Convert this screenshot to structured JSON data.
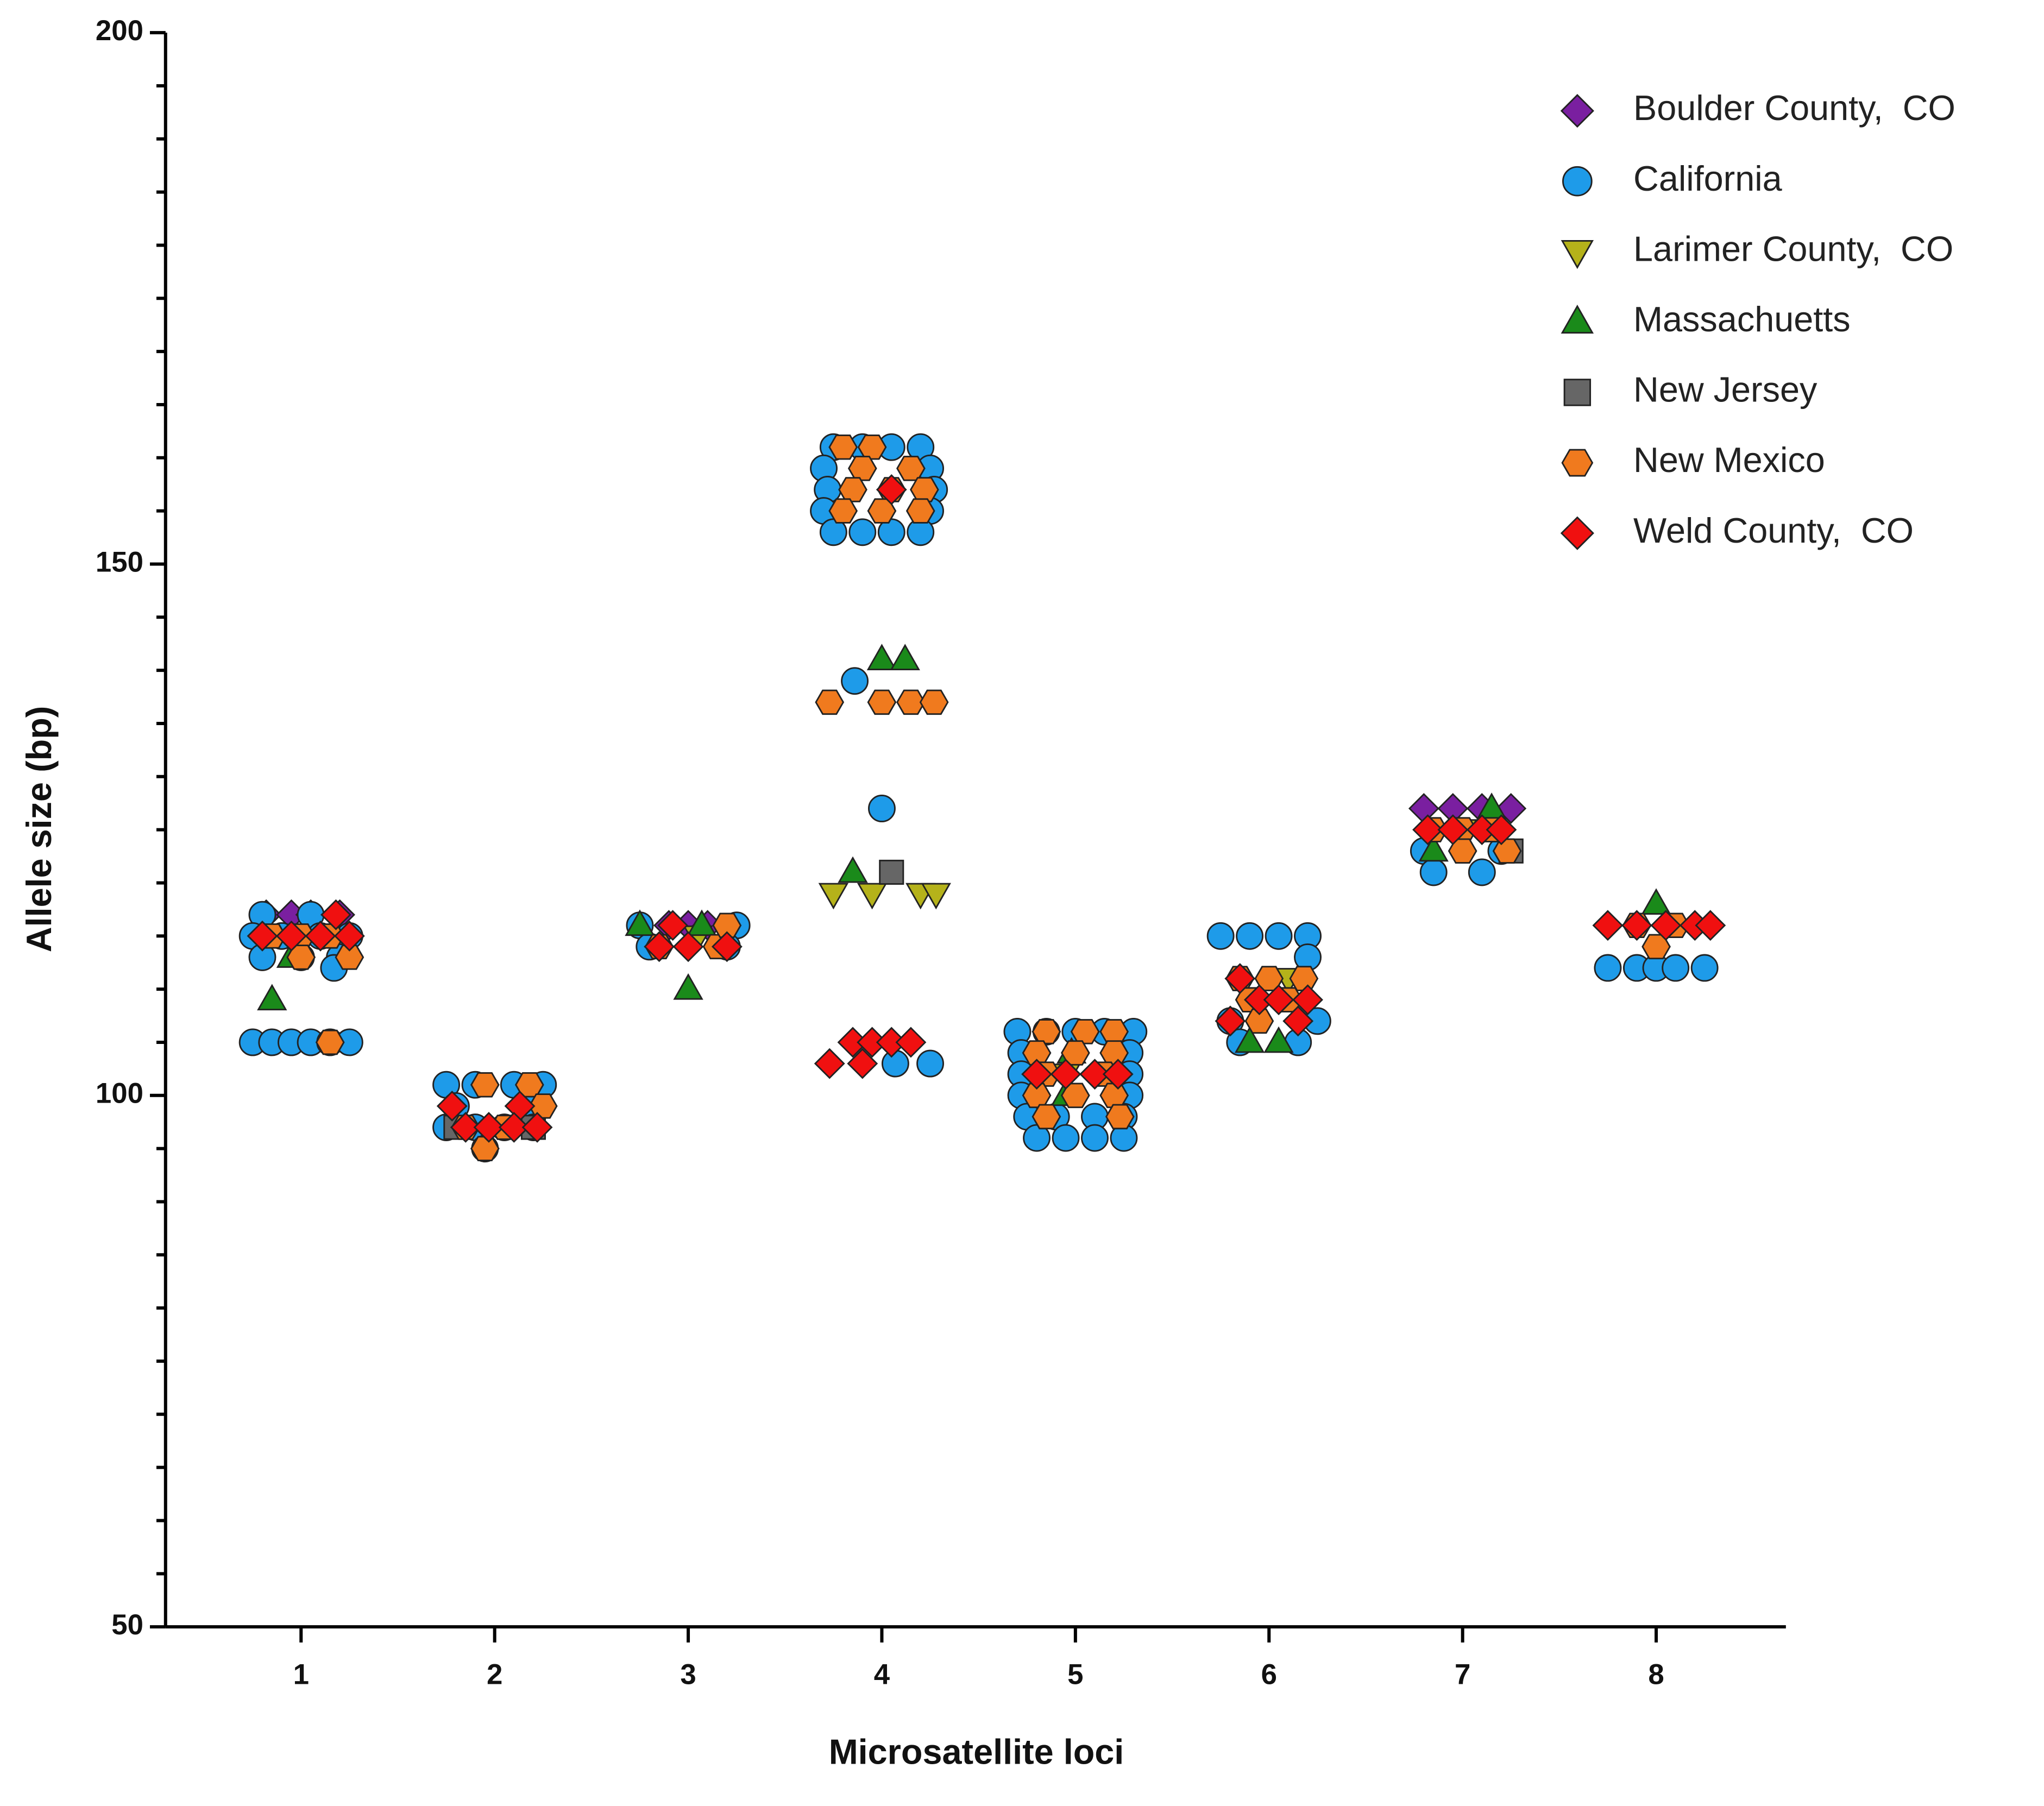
{
  "chart_data": {
    "type": "scatter",
    "xlabel": "Microsatellite loci",
    "ylabel": "Allele size (bp)",
    "xlim": [
      0.3,
      8.67
    ],
    "ylim": [
      50,
      200
    ],
    "xticks": [
      1,
      2,
      3,
      4,
      5,
      6,
      7,
      8
    ],
    "yticks": [
      50,
      100,
      150,
      200
    ],
    "minor_yticks": [
      55,
      60,
      65,
      70,
      75,
      80,
      85,
      90,
      95,
      105,
      110,
      115,
      120,
      125,
      130,
      135,
      140,
      145,
      155,
      160,
      165,
      170,
      175,
      180,
      185,
      190,
      195
    ],
    "legend": "upper right",
    "series": [
      {
        "name": "Boulder County,  CO",
        "color": "#7a1fa0",
        "marker": "diamond",
        "x": [
          0.82,
          0.95,
          1.05,
          1.2,
          2.9,
          3.0,
          3.1,
          6.8,
          6.95,
          7.1,
          7.25
        ],
        "values": [
          117,
          117,
          117,
          117,
          116,
          116,
          116,
          127,
          127,
          127,
          127
        ]
      },
      {
        "name": "California",
        "color": "#1e9be9",
        "marker": "circle",
        "x": [
          0.8,
          1.05,
          0.75,
          0.9,
          1.1,
          1.25,
          0.8,
          1.0,
          1.2,
          1.17,
          0.75,
          0.85,
          0.95,
          1.05,
          1.15,
          1.25,
          1.75,
          1.9,
          2.1,
          2.25,
          1.8,
          2.2,
          1.75,
          1.9,
          2.05,
          2.2,
          1.95,
          2.75,
          3.25,
          2.8,
          3.2,
          3.75,
          3.9,
          4.05,
          4.2,
          3.7,
          4.25,
          3.72,
          4.27,
          3.7,
          4.25,
          3.75,
          3.9,
          4.05,
          4.2,
          3.86,
          4.0,
          4.07,
          4.25,
          4.7,
          4.85,
          5.0,
          5.15,
          5.3,
          4.72,
          5.28,
          4.72,
          5.28,
          4.72,
          5.28,
          4.75,
          4.9,
          5.1,
          5.25,
          4.8,
          4.95,
          5.1,
          5.25,
          5.75,
          5.9,
          6.05,
          6.2,
          6.2,
          5.8,
          6.25,
          5.85,
          6.15,
          6.8,
          7.2,
          6.85,
          7.1,
          7.75,
          7.9,
          8.0,
          8.1,
          8.25
        ],
        "values": [
          117,
          117,
          115,
          115,
          115,
          115,
          113,
          113,
          113,
          112,
          105,
          105,
          105,
          105,
          105,
          105,
          101,
          101,
          101,
          101,
          99,
          99,
          97,
          97,
          97,
          97,
          95,
          116,
          116,
          114,
          114,
          161,
          161,
          161,
          161,
          159,
          159,
          157,
          157,
          155,
          155,
          153,
          153,
          153,
          153,
          139,
          127,
          103,
          103,
          106,
          106,
          106,
          106,
          106,
          104,
          104,
          102,
          102,
          100,
          100,
          98,
          98,
          98,
          98,
          96,
          96,
          96,
          96,
          115,
          115,
          115,
          115,
          113,
          107,
          107,
          105,
          105,
          123,
          123,
          121,
          121,
          112,
          112,
          112,
          112,
          112
        ]
      },
      {
        "name": "Larimer County,  CO",
        "color": "#b5b21a",
        "marker": "triangle-down",
        "x": [
          3.05,
          3.75,
          3.95,
          4.2,
          4.28,
          4.95,
          6.1,
          7.0
        ],
        "values": [
          115,
          119,
          119,
          119,
          119,
          102,
          111,
          125
        ]
      },
      {
        "name": "Massachuetts",
        "color": "#1a8a1a",
        "marker": "triangle",
        "x": [
          0.85,
          0.95,
          2.75,
          3.07,
          3.0,
          4.0,
          4.12,
          3.85,
          4.98,
          4.95,
          5.9,
          6.05,
          7.15,
          6.85,
          8.0
        ],
        "values": [
          109,
          113,
          116,
          116,
          110,
          141,
          141,
          121,
          104,
          100,
          105,
          105,
          127,
          123,
          118
        ]
      },
      {
        "name": "New Jersey",
        "color": "#666666",
        "marker": "square",
        "x": [
          1.8,
          2.2,
          4.05,
          7.25
        ],
        "values": [
          97,
          97,
          121,
          123
        ]
      },
      {
        "name": "New Mexico",
        "color": "#f07a1e",
        "marker": "hexagon",
        "x": [
          0.85,
          1.0,
          1.15,
          1.0,
          1.25,
          1.15,
          1.95,
          2.18,
          2.25,
          1.85,
          2.05,
          1.95,
          2.85,
          3.15,
          3.2,
          3.8,
          3.95,
          3.9,
          4.15,
          3.85,
          4.05,
          4.22,
          3.8,
          4.0,
          4.2,
          3.73,
          4.0,
          4.15,
          4.27,
          4.85,
          5.05,
          5.2,
          4.8,
          5.0,
          5.2,
          4.85,
          5.15,
          4.8,
          5.0,
          5.2,
          4.85,
          5.23,
          5.85,
          6.0,
          6.18,
          5.9,
          6.1,
          5.95,
          6.85,
          7.0,
          7.15,
          7.0,
          7.23,
          7.9,
          8.1,
          8.0
        ],
        "values": [
          115,
          115,
          115,
          113,
          113,
          105,
          101,
          101,
          99,
          97,
          97,
          95,
          114,
          114,
          116,
          161,
          161,
          159,
          159,
          157,
          157,
          157,
          155,
          155,
          155,
          137,
          137,
          137,
          137,
          106,
          106,
          106,
          104,
          104,
          104,
          102,
          102,
          100,
          100,
          100,
          98,
          98,
          111,
          111,
          111,
          109,
          109,
          107,
          125,
          125,
          125,
          123,
          123,
          116,
          116,
          114
        ]
      },
      {
        "name": "Weld County,  CO",
        "color": "#f01010",
        "marker": "diamond",
        "x": [
          0.8,
          0.95,
          1.1,
          1.25,
          1.18,
          1.78,
          2.13,
          1.85,
          1.97,
          2.1,
          2.22,
          2.85,
          3.0,
          3.2,
          2.92,
          4.05,
          3.85,
          3.95,
          4.05,
          4.15,
          3.73,
          3.9,
          4.8,
          4.95,
          5.1,
          5.22,
          5.85,
          5.95,
          6.05,
          6.2,
          5.8,
          6.15,
          6.82,
          6.95,
          7.1,
          7.2,
          7.75,
          7.9,
          8.05,
          8.2,
          8.28
        ],
        "values": [
          115,
          115,
          115,
          115,
          117,
          99,
          99,
          97,
          97,
          97,
          97,
          114,
          114,
          114,
          116,
          157,
          105,
          105,
          105,
          105,
          103,
          103,
          102,
          102,
          102,
          102,
          111,
          109,
          109,
          109,
          107,
          107,
          125,
          125,
          125,
          125,
          116,
          116,
          116,
          116,
          116
        ]
      }
    ]
  }
}
